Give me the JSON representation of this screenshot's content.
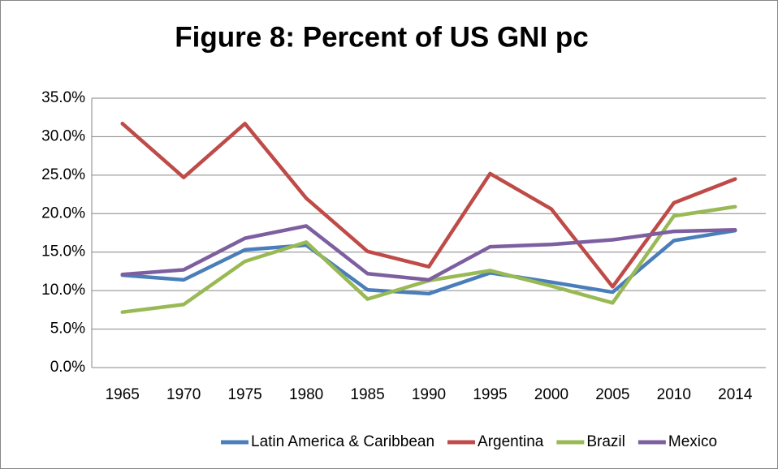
{
  "chart_data": {
    "type": "line",
    "title": "Figure 8: Percent of US GNI pc",
    "categories": [
      "1965",
      "1970",
      "1975",
      "1980",
      "1985",
      "1990",
      "1995",
      "2000",
      "2005",
      "2010",
      "2014"
    ],
    "series": [
      {
        "name": "Latin America & Caribbean",
        "color": "#4a7ebb",
        "values": [
          12.0,
          11.4,
          15.3,
          15.9,
          10.1,
          9.6,
          12.3,
          11.1,
          9.8,
          16.5,
          17.8
        ]
      },
      {
        "name": "Argentina",
        "color": "#be4b48",
        "values": [
          31.7,
          24.7,
          31.7,
          22.0,
          15.1,
          13.1,
          25.2,
          20.6,
          10.5,
          21.4,
          24.5
        ]
      },
      {
        "name": "Brazil",
        "color": "#98b954",
        "values": [
          7.2,
          8.2,
          13.8,
          16.3,
          8.9,
          11.3,
          12.6,
          10.6,
          8.4,
          19.7,
          20.9
        ]
      },
      {
        "name": "Mexico",
        "color": "#7d5fa0",
        "values": [
          12.1,
          12.7,
          16.8,
          18.4,
          12.2,
          11.4,
          15.7,
          16.0,
          16.6,
          17.7,
          17.9
        ]
      }
    ],
    "ylim": [
      0,
      35
    ],
    "yticks": [
      {
        "value": 0,
        "label": "0.0%"
      },
      {
        "value": 5,
        "label": "5.0%"
      },
      {
        "value": 10,
        "label": "10.0%"
      },
      {
        "value": 15,
        "label": "15.0%"
      },
      {
        "value": 20,
        "label": "20.0%"
      },
      {
        "value": 25,
        "label": "25.0%"
      },
      {
        "value": 30,
        "label": "30.0%"
      },
      {
        "value": 35,
        "label": "35.0%"
      }
    ],
    "grid": true,
    "legend": "bottom"
  }
}
